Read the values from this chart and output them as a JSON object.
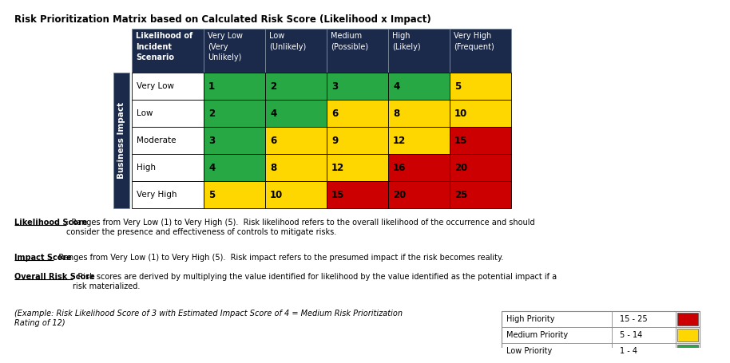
{
  "title": "Risk Prioritization Matrix based on Calculated Risk Score (Likelihood x Impact)",
  "header_bg": "#1B2A4A",
  "row_labels": [
    "Very Low",
    "Low",
    "Moderate",
    "High",
    "Very High"
  ],
  "col_labels": [
    "Very Low\n(Very\nUnlikely)",
    "Low\n(Unlikely)",
    "Medium\n(Possible)",
    "High\n(Likely)",
    "Very High\n(Frequent)"
  ],
  "col_header_label": "Likelihood of\nIncident\nScenario",
  "side_label": "Business Impact",
  "matrix_values": [
    [
      1,
      2,
      3,
      4,
      5
    ],
    [
      2,
      4,
      6,
      8,
      10
    ],
    [
      3,
      6,
      9,
      12,
      15
    ],
    [
      4,
      8,
      12,
      16,
      20
    ],
    [
      5,
      10,
      15,
      20,
      25
    ]
  ],
  "cell_colors": [
    [
      "#28A745",
      "#28A745",
      "#28A745",
      "#28A745",
      "#FFD700"
    ],
    [
      "#28A745",
      "#28A745",
      "#FFD700",
      "#FFD700",
      "#FFD700"
    ],
    [
      "#28A745",
      "#FFD700",
      "#FFD700",
      "#FFD700",
      "#CC0000"
    ],
    [
      "#28A745",
      "#FFD700",
      "#FFD700",
      "#CC0000",
      "#CC0000"
    ],
    [
      "#FFD700",
      "#FFD700",
      "#CC0000",
      "#CC0000",
      "#CC0000"
    ]
  ],
  "text_below": [
    {
      "label": "Likelihood Score",
      "text": ": Ranges from Very Low (1) to Very High (5).  Risk likelihood refers to the overall likelihood of the occurrence and should\nconsider the presence and effectiveness of controls to mitigate risks."
    },
    {
      "label": "Impact Score",
      "text": ": Ranges from Very Low (1) to Very High (5).  Risk impact refers to the presumed impact if the risk becomes reality."
    },
    {
      "label": "Overall Risk Score",
      "text": ": Risk scores are derived by multiplying the value identified for likelihood by the value identified as the potential impact if a\nrisk materialized."
    }
  ],
  "example_text": "(Example: Risk Likelihood Score of 3 with Estimated Impact Score of 4 = Medium Risk Prioritization\nRating of 12)",
  "legend_items": [
    {
      "label": "High Priority",
      "range": "15 - 25",
      "color": "#CC0000"
    },
    {
      "label": "Medium Priority",
      "range": "5 - 14",
      "color": "#FFD700"
    },
    {
      "label": "Low Priority",
      "range": "1 - 4",
      "color": "#28A745"
    }
  ],
  "bg_color": "#FFFFFF"
}
